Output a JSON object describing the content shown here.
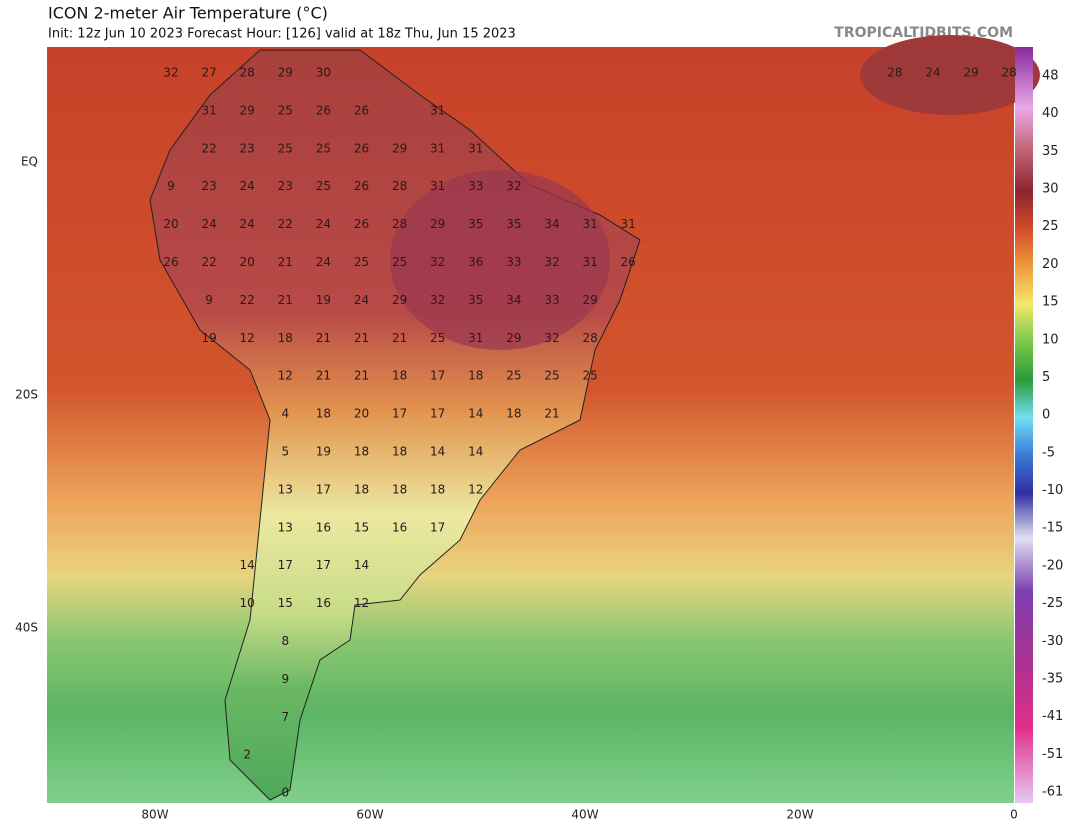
{
  "header": {
    "title": "ICON 2-meter Air Temperature (°C)",
    "subtitle": "Init: 12z Jun 10 2023   Forecast Hour: [126]   valid at 18z Thu, Jun 15 2023",
    "brand": "TROPICALTIDBITS.COM"
  },
  "map": {
    "lat_labels": [
      "EQ",
      "20S",
      "40S"
    ],
    "lon_labels": [
      "80W",
      "60W",
      "40W",
      "20W",
      "0"
    ],
    "rows": [
      [
        "32",
        "27",
        "28",
        "29",
        "30",
        null,
        null,
        null,
        null,
        null,
        null,
        null,
        null,
        null,
        null,
        null,
        null,
        null,
        null,
        "28",
        "24",
        "29",
        "28"
      ],
      [
        null,
        "31",
        "29",
        "25",
        "26",
        "26",
        null,
        "31"
      ],
      [
        null,
        "22",
        "23",
        "25",
        "25",
        "26",
        "29",
        "31",
        "31"
      ],
      [
        "9",
        "23",
        "24",
        "23",
        "25",
        "26",
        "28",
        "31",
        "33",
        "32"
      ],
      [
        "20",
        "24",
        "24",
        "22",
        "24",
        "26",
        "28",
        "29",
        "35",
        "35",
        "34",
        "31",
        "31"
      ],
      [
        "26",
        "22",
        "20",
        "21",
        "24",
        "25",
        "25",
        "32",
        "36",
        "33",
        "32",
        "31",
        "26"
      ],
      [
        null,
        "9",
        "22",
        "21",
        "19",
        "24",
        "29",
        "32",
        "35",
        "34",
        "33",
        "29"
      ],
      [
        null,
        "19",
        "12",
        "18",
        "21",
        "21",
        "21",
        "25",
        "31",
        "29",
        "32",
        "28"
      ],
      [
        null,
        null,
        null,
        "12",
        "21",
        "21",
        "18",
        "17",
        "18",
        "25",
        "25",
        "25"
      ],
      [
        null,
        null,
        null,
        "4",
        "18",
        "20",
        "17",
        "17",
        "14",
        "18",
        "21"
      ],
      [
        null,
        null,
        null,
        "5",
        "19",
        "18",
        "18",
        "14",
        "14"
      ],
      [
        null,
        null,
        null,
        "13",
        "17",
        "18",
        "18",
        "18",
        "12"
      ],
      [
        null,
        null,
        null,
        "13",
        "16",
        "15",
        "16",
        "17"
      ],
      [
        null,
        null,
        "14",
        "17",
        "17",
        "14"
      ],
      [
        null,
        null,
        "10",
        "15",
        "16",
        "12"
      ],
      [
        null,
        null,
        null,
        "8"
      ],
      [
        null,
        null,
        null,
        "9"
      ],
      [
        null,
        null,
        null,
        "7"
      ],
      [
        null,
        null,
        "2"
      ],
      [
        null,
        null,
        null,
        "0"
      ]
    ]
  },
  "colorbar": {
    "labels": [
      "48",
      "40",
      "35",
      "30",
      "25",
      "20",
      "15",
      "10",
      "5",
      "0",
      "-5",
      "-10",
      "-15",
      "-20",
      "-25",
      "-30",
      "-35",
      "-41",
      "-51",
      "-61"
    ]
  }
}
